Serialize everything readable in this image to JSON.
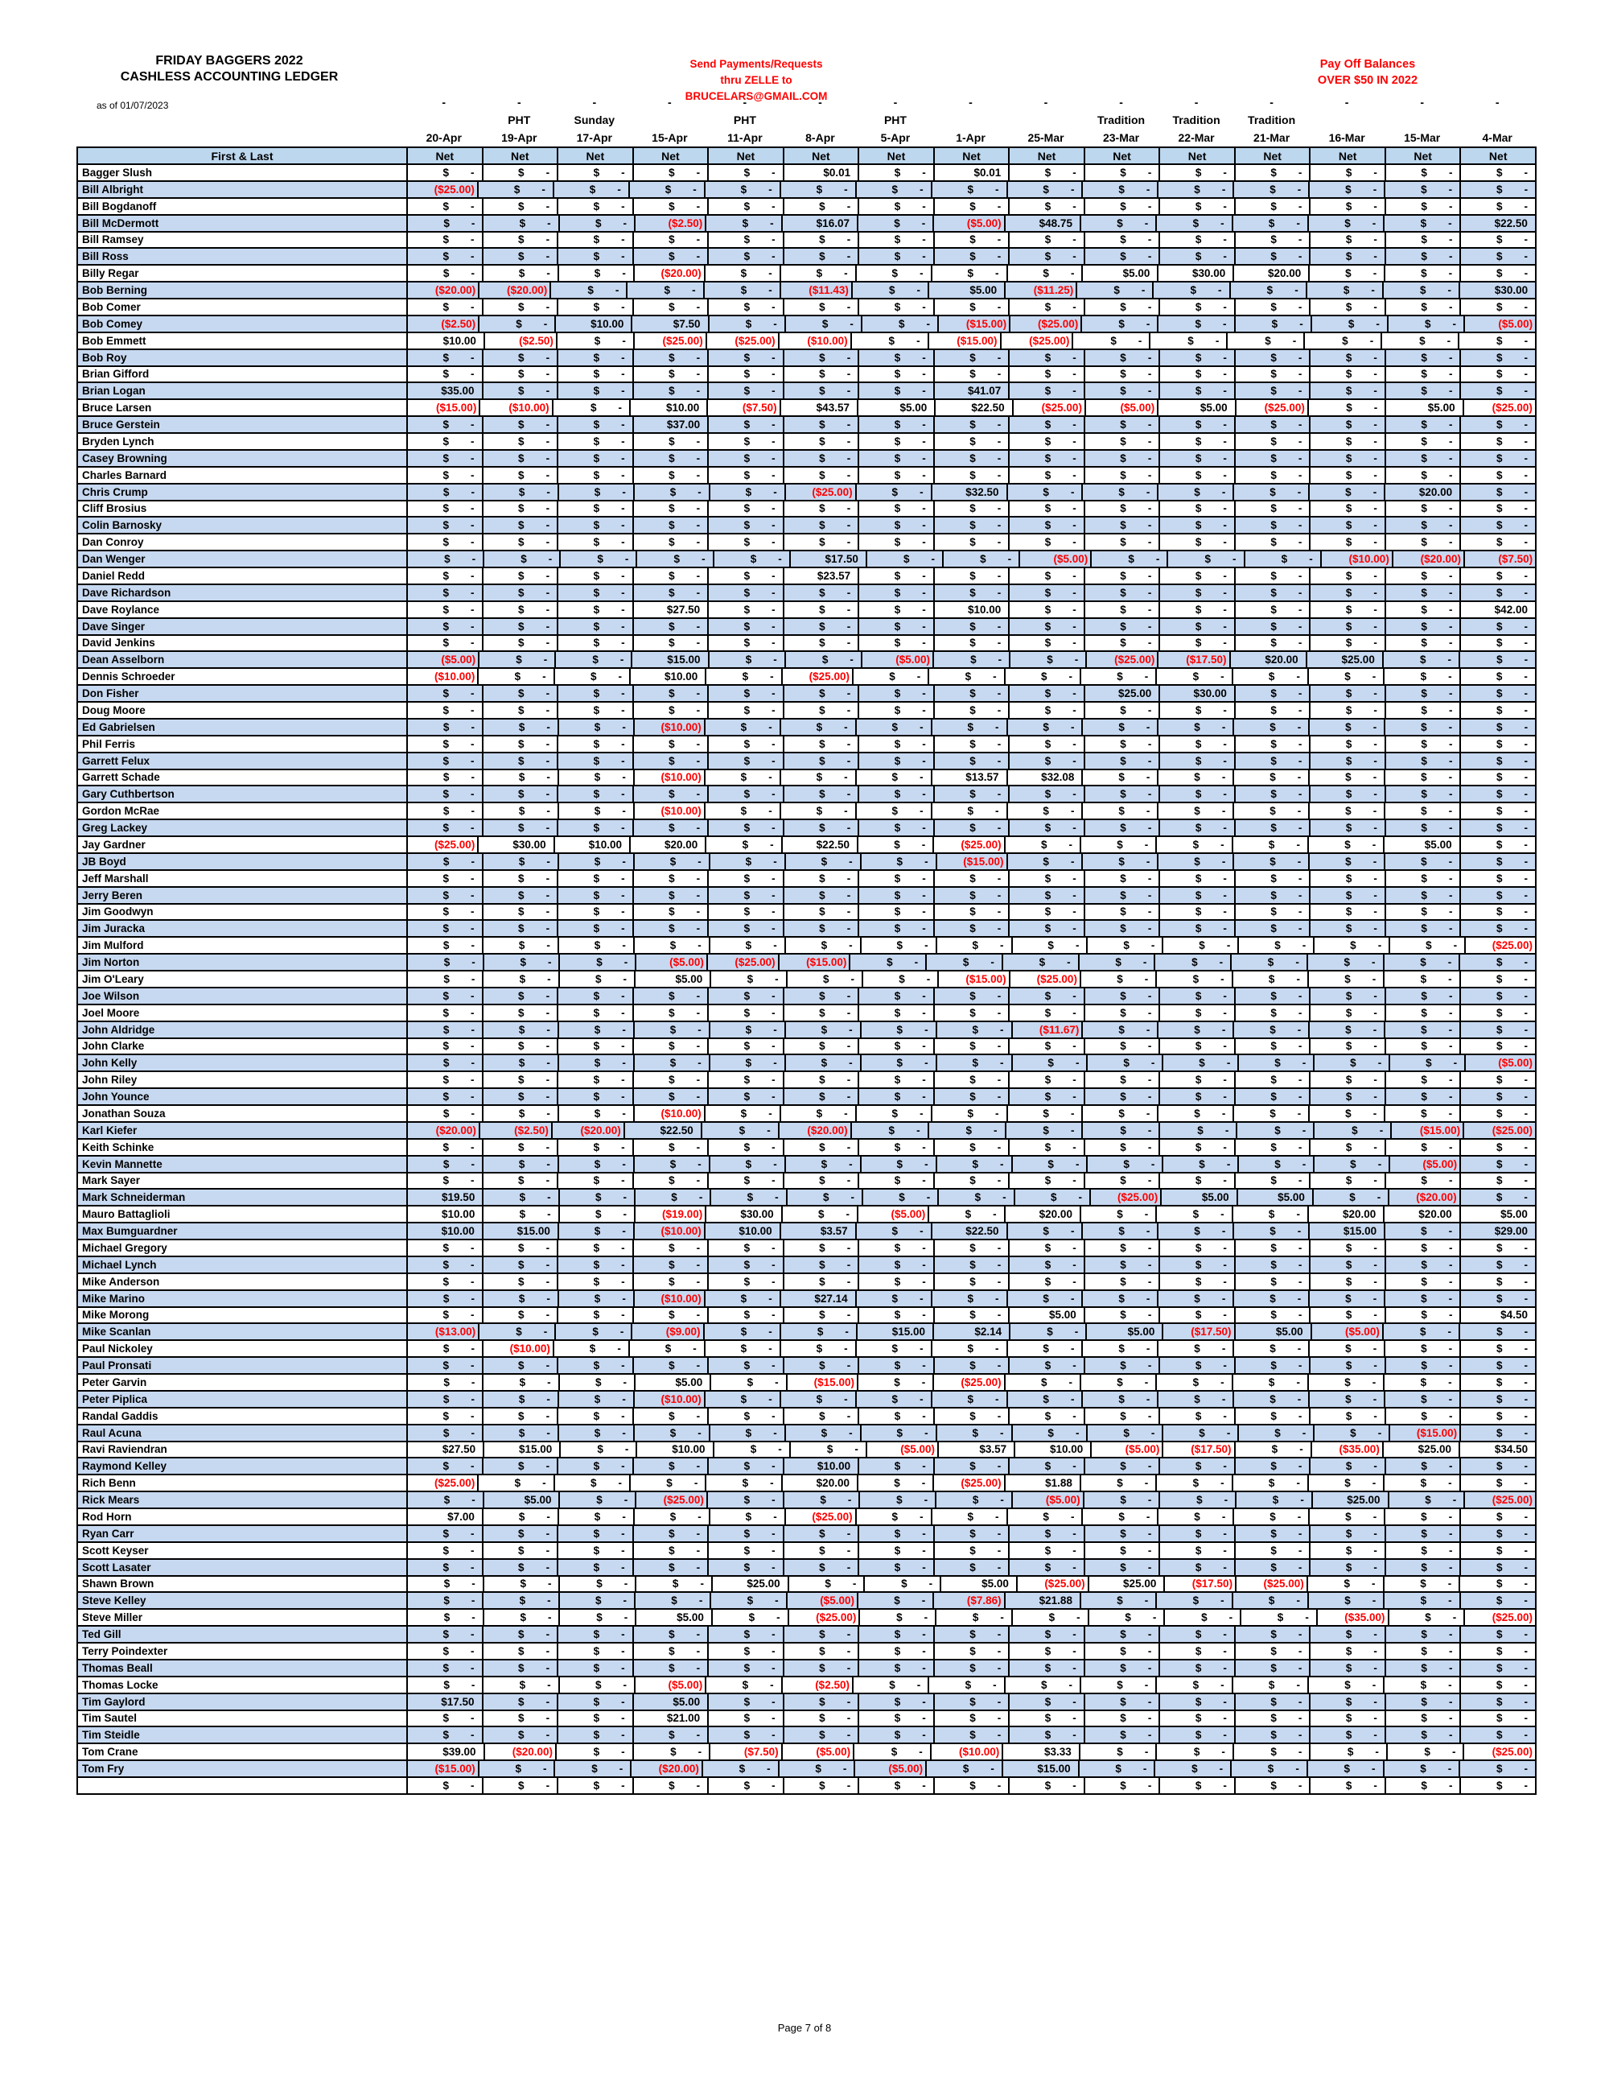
{
  "header": {
    "title_line1": "FRIDAY BAGGERS 2022",
    "title_line2": "CASHLESS  ACCOUNTING LEDGER",
    "as_of": "as of 01/07/2023",
    "zelle_note_lines": [
      "Send Payments/Requests",
      "thru ZELLE to",
      "BRUCELARS@GMAIL.COM"
    ],
    "payoff_note_lines": [
      "Pay Off Balances",
      "OVER $50 IN  2022"
    ]
  },
  "colors": {
    "note": "#FF0000",
    "negative": "#FF0000",
    "header_band": "#BDD7EE",
    "row_alt": "#C7D9F1"
  },
  "table": {
    "name_header": "First & Last",
    "net_label": "Net",
    "dash": "-",
    "empty_cell_currency": "$",
    "empty_cell_dash": "-",
    "columns": [
      {
        "event": "",
        "date": "20-Apr"
      },
      {
        "event": "PHT",
        "date": "19-Apr"
      },
      {
        "event": "Sunday",
        "date": "17-Apr"
      },
      {
        "event": "",
        "date": "15-Apr"
      },
      {
        "event": "PHT",
        "date": "11-Apr"
      },
      {
        "event": "",
        "date": "8-Apr"
      },
      {
        "event": "PHT",
        "date": "5-Apr"
      },
      {
        "event": "",
        "date": "1-Apr"
      },
      {
        "event": "",
        "date": "25-Mar"
      },
      {
        "event": "Tradition",
        "date": "23-Mar"
      },
      {
        "event": "Tradition",
        "date": "22-Mar"
      },
      {
        "event": "Tradition",
        "date": "21-Mar"
      },
      {
        "event": "",
        "date": "16-Mar"
      },
      {
        "event": "",
        "date": "15-Mar"
      },
      {
        "event": "",
        "date": "4-Mar"
      }
    ],
    "rows": [
      {
        "name": "Bagger Slush",
        "values": {
          "6": "$0.01",
          "8": "$0.01"
        }
      },
      {
        "name": "Bill Albright",
        "values": {
          "1": "($25.00)"
        }
      },
      {
        "name": "Bill Bogdanoff",
        "values": {}
      },
      {
        "name": "Bill McDermott",
        "values": {
          "4": "($2.50)",
          "6": "$16.07",
          "8": "($5.00)",
          "9": "$48.75",
          "15": "$22.50"
        }
      },
      {
        "name": "Bill Ramsey",
        "values": {}
      },
      {
        "name": "Bill Ross",
        "values": {}
      },
      {
        "name": "Billy Regar",
        "values": {
          "4": "($20.00)",
          "10": "$5.00",
          "11": "$30.00",
          "12": "$20.00"
        }
      },
      {
        "name": "Bob Berning",
        "values": {
          "1": "($20.00)",
          "2": "($20.00)",
          "6": "($11.43)",
          "8": "$5.00",
          "9": "($11.25)",
          "15": "$30.00"
        }
      },
      {
        "name": "Bob Comer",
        "values": {}
      },
      {
        "name": "Bob Comey",
        "values": {
          "1": "($2.50)",
          "3": "$10.00",
          "4": "$7.50",
          "8": "($15.00)",
          "9": "($25.00)",
          "15": "($5.00)"
        }
      },
      {
        "name": "Bob Emmett",
        "values": {
          "1": "$10.00",
          "2": "($2.50)",
          "4": "($25.00)",
          "5": "($25.00)",
          "6": "($10.00)",
          "8": "($15.00)",
          "9": "($25.00)"
        }
      },
      {
        "name": "Bob Roy",
        "values": {}
      },
      {
        "name": "Brian Gifford",
        "values": {}
      },
      {
        "name": "Brian Logan",
        "values": {
          "1": "$35.00",
          "8": "$41.07"
        }
      },
      {
        "name": "Bruce Larsen",
        "values": {
          "1": "($15.00)",
          "2": "($10.00)",
          "4": "$10.00",
          "5": "($7.50)",
          "6": "$43.57",
          "7": "$5.00",
          "8": "$22.50",
          "9": "($25.00)",
          "10": "($5.00)",
          "11": "$5.00",
          "12": "($25.00)",
          "14": "$5.00",
          "15": "($25.00)"
        }
      },
      {
        "name": "Bruce Gerstein",
        "values": {
          "4": "$37.00"
        }
      },
      {
        "name": "Bryden Lynch",
        "values": {}
      },
      {
        "name": "Casey Browning",
        "values": {}
      },
      {
        "name": "Charles Barnard",
        "values": {}
      },
      {
        "name": "Chris Crump",
        "values": {
          "6": "($25.00)",
          "8": "$32.50",
          "14": "$20.00"
        }
      },
      {
        "name": "Cliff Brosius",
        "values": {}
      },
      {
        "name": "Colin Barnosky",
        "values": {}
      },
      {
        "name": "Dan Conroy",
        "values": {}
      },
      {
        "name": "Dan Wenger",
        "values": {
          "6": "$17.50",
          "9": "($5.00)",
          "13": "($10.00)",
          "14": "($20.00)",
          "15": "($7.50)"
        }
      },
      {
        "name": "Daniel Redd",
        "values": {
          "6": "$23.57"
        }
      },
      {
        "name": "Dave Richardson",
        "values": {}
      },
      {
        "name": "Dave Roylance",
        "values": {
          "4": "$27.50",
          "8": "$10.00",
          "15": "$42.00"
        }
      },
      {
        "name": "Dave Singer",
        "values": {}
      },
      {
        "name": "David Jenkins",
        "values": {}
      },
      {
        "name": "Dean Asselborn",
        "values": {
          "1": "($5.00)",
          "4": "$15.00",
          "7": "($5.00)",
          "10": "($25.00)",
          "11": "($17.50)",
          "12": "$20.00",
          "13": "$25.00"
        }
      },
      {
        "name": "Dennis Schroeder",
        "values": {
          "1": "($10.00)",
          "4": "$10.00",
          "6": "($25.00)"
        }
      },
      {
        "name": "Don Fisher",
        "values": {
          "10": "$25.00",
          "11": "$30.00"
        }
      },
      {
        "name": "Doug Moore",
        "values": {}
      },
      {
        "name": "Ed Gabrielsen",
        "values": {
          "4": "($10.00)"
        }
      },
      {
        "name": "Phil Ferris",
        "values": {}
      },
      {
        "name": "Garrett Felux",
        "values": {}
      },
      {
        "name": "Garrett Schade",
        "values": {
          "4": "($10.00)",
          "8": "$13.57",
          "9": "$32.08"
        }
      },
      {
        "name": "Gary Cuthbertson",
        "values": {}
      },
      {
        "name": "Gordon McRae",
        "values": {
          "4": "($10.00)"
        }
      },
      {
        "name": "Greg Lackey",
        "values": {}
      },
      {
        "name": "Jay Gardner",
        "values": {
          "1": "($25.00)",
          "2": "$30.00",
          "3": "$10.00",
          "4": "$20.00",
          "6": "$22.50",
          "8": "($25.00)",
          "14": "$5.00"
        }
      },
      {
        "name": "JB Boyd",
        "values": {
          "8": "($15.00)"
        }
      },
      {
        "name": "Jeff Marshall",
        "values": {}
      },
      {
        "name": "Jerry Beren",
        "values": {}
      },
      {
        "name": "Jim Goodwyn",
        "values": {}
      },
      {
        "name": "Jim Juracka",
        "values": {}
      },
      {
        "name": "Jim Mulford",
        "values": {
          "15": "($25.00)"
        }
      },
      {
        "name": "Jim Norton",
        "values": {
          "4": "($5.00)",
          "5": "($25.00)",
          "6": "($15.00)"
        }
      },
      {
        "name": "Jim O'Leary",
        "values": {
          "4": "$5.00",
          "8": "($15.00)",
          "9": "($25.00)"
        }
      },
      {
        "name": "Joe Wilson",
        "values": {}
      },
      {
        "name": "Joel Moore",
        "values": {}
      },
      {
        "name": "John Aldridge",
        "values": {
          "9": "($11.67)"
        }
      },
      {
        "name": "John Clarke",
        "values": {}
      },
      {
        "name": "John Kelly",
        "values": {
          "15": "($5.00)"
        }
      },
      {
        "name": "John Riley",
        "values": {}
      },
      {
        "name": "John Younce",
        "values": {}
      },
      {
        "name": "Jonathan Souza",
        "values": {
          "4": "($10.00)"
        }
      },
      {
        "name": "Karl Kiefer",
        "values": {
          "1": "($20.00)",
          "2": "($2.50)",
          "3": "($20.00)",
          "4": "$22.50",
          "6": "($20.00)",
          "14": "($15.00)",
          "15": "($25.00)"
        }
      },
      {
        "name": "Keith Schinke",
        "values": {}
      },
      {
        "name": "Kevin Mannette",
        "values": {
          "14": "($5.00)"
        }
      },
      {
        "name": "Mark Sayer",
        "values": {}
      },
      {
        "name": "Mark Schneiderman",
        "values": {
          "1": "$19.50",
          "10": "($25.00)",
          "11": "$5.00",
          "12": "$5.00",
          "14": "($20.00)"
        }
      },
      {
        "name": "Mauro Battaglioli",
        "values": {
          "1": "$10.00",
          "4": "($19.00)",
          "5": "$30.00",
          "7": "($5.00)",
          "9": "$20.00",
          "13": "$20.00",
          "14": "$20.00",
          "15": "$5.00"
        }
      },
      {
        "name": "Max Bumguardner",
        "values": {
          "1": "$10.00",
          "2": "$15.00",
          "4": "($10.00)",
          "5": "$10.00",
          "6": "$3.57",
          "8": "$22.50",
          "13": "$15.00",
          "15": "$29.00"
        }
      },
      {
        "name": "Michael Gregory",
        "values": {}
      },
      {
        "name": "Michael Lynch",
        "values": {}
      },
      {
        "name": "Mike Anderson",
        "values": {}
      },
      {
        "name": "Mike Marino",
        "values": {
          "4": "($10.00)",
          "6": "$27.14"
        }
      },
      {
        "name": "Mike Morong",
        "values": {
          "9": "$5.00",
          "15": "$4.50"
        }
      },
      {
        "name": "Mike Scanlan",
        "values": {
          "1": "($13.00)",
          "4": "($9.00)",
          "7": "$15.00",
          "8": "$2.14",
          "10": "$5.00",
          "11": "($17.50)",
          "12": "$5.00",
          "13": "($5.00)"
        }
      },
      {
        "name": "Paul Nickoley",
        "values": {
          "2": "($10.00)"
        }
      },
      {
        "name": "Paul Pronsati",
        "values": {}
      },
      {
        "name": "Peter Garvin",
        "values": {
          "4": "$5.00",
          "6": "($15.00)",
          "8": "($25.00)"
        }
      },
      {
        "name": "Peter Piplica",
        "values": {
          "4": "($10.00)"
        }
      },
      {
        "name": "Randal Gaddis",
        "values": {}
      },
      {
        "name": "Raul Acuna",
        "values": {
          "14": "($15.00)"
        }
      },
      {
        "name": "Ravi Raviendran",
        "values": {
          "1": "$27.50",
          "2": "$15.00",
          "4": "$10.00",
          "7": "($5.00)",
          "8": "$3.57",
          "9": "$10.00",
          "10": "($5.00)",
          "11": "($17.50)",
          "13": "($35.00)",
          "14": "$25.00",
          "15": "$34.50"
        }
      },
      {
        "name": "Raymond Kelley",
        "values": {
          "6": "$10.00"
        }
      },
      {
        "name": "Rich Benn",
        "values": {
          "1": "($25.00)",
          "6": "$20.00",
          "8": "($25.00)",
          "9": "$1.88"
        }
      },
      {
        "name": "Rick Mears",
        "values": {
          "2": "$5.00",
          "4": "($25.00)",
          "9": "($5.00)",
          "13": "$25.00",
          "15": "($25.00)"
        }
      },
      {
        "name": "Rod Horn",
        "values": {
          "1": "$7.00",
          "6": "($25.00)"
        }
      },
      {
        "name": "Ryan Carr",
        "values": {}
      },
      {
        "name": "Scott Keyser",
        "values": {}
      },
      {
        "name": "Scott Lasater",
        "values": {}
      },
      {
        "name": "Shawn Brown",
        "values": {
          "5": "$25.00",
          "8": "$5.00",
          "9": "($25.00)",
          "10": "$25.00",
          "11": "($17.50)",
          "12": "($25.00)"
        }
      },
      {
        "name": "Steve Kelley",
        "values": {
          "6": "($5.00)",
          "8": "($7.86)",
          "9": "$21.88"
        }
      },
      {
        "name": "Steve Miller",
        "values": {
          "4": "$5.00",
          "6": "($25.00)",
          "13": "($35.00)",
          "15": "($25.00)"
        }
      },
      {
        "name": "Ted Gill",
        "values": {}
      },
      {
        "name": "Terry Poindexter",
        "values": {}
      },
      {
        "name": "Thomas Beall",
        "values": {}
      },
      {
        "name": "Thomas Locke",
        "values": {
          "4": "($5.00)",
          "6": "($2.50)"
        }
      },
      {
        "name": "Tim Gaylord",
        "values": {
          "1": "$17.50",
          "4": "$5.00"
        }
      },
      {
        "name": "Tim Sautel",
        "values": {
          "4": "$21.00"
        }
      },
      {
        "name": "Tim Steidle",
        "values": {}
      },
      {
        "name": "Tom Crane",
        "values": {
          "1": "$39.00",
          "2": "($20.00)",
          "5": "($7.50)",
          "6": "($5.00)",
          "8": "($10.00)",
          "9": "$3.33",
          "15": "($25.00)"
        }
      },
      {
        "name": "Tom Fry",
        "values": {
          "1": "($15.00)",
          "4": "($20.00)",
          "7": "($5.00)",
          "9": "$15.00"
        }
      },
      {
        "name": "",
        "values": {}
      }
    ]
  },
  "footer": {
    "page_label": "Page 7 of 8"
  }
}
